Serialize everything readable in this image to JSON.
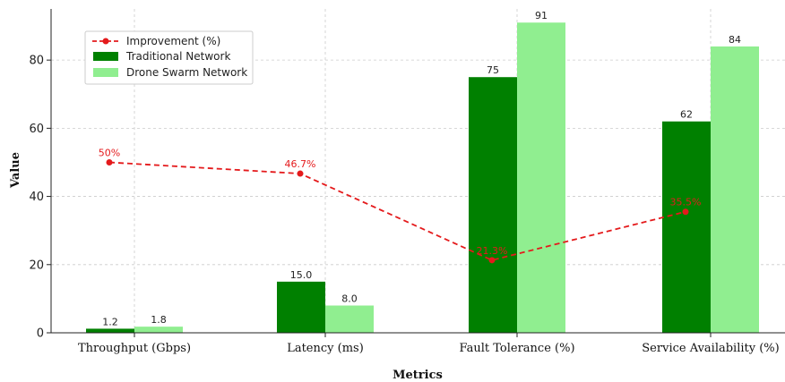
{
  "chart_data": {
    "type": "bar",
    "xlabel": "Metrics",
    "ylabel": "Value",
    "ylim": [
      0,
      95
    ],
    "yticks": [
      0,
      20,
      40,
      60,
      80
    ],
    "categories": [
      "Throughput (Gbps)",
      "Latency (ms)",
      "Fault Tolerance (%)",
      "Service Availability (%)"
    ],
    "series": [
      {
        "name": "Traditional Network",
        "type": "bar",
        "color": "#008000",
        "values": [
          1.2,
          15.0,
          75,
          62
        ],
        "labels": [
          "1.2",
          "15.0",
          "75",
          "62"
        ]
      },
      {
        "name": "Drone Swarm Network",
        "type": "bar",
        "color": "#90ee90",
        "values": [
          1.8,
          8.0,
          91,
          84
        ],
        "labels": [
          "1.8",
          "8.0",
          "91",
          "84"
        ]
      },
      {
        "name": "Improvement (%)",
        "type": "line",
        "color": "#e41a1c",
        "line_style": "dashed",
        "values": [
          50,
          46.7,
          21.3,
          35.5
        ],
        "labels": [
          "50%",
          "46.7%",
          "21.3%",
          "35.5%"
        ]
      }
    ],
    "legend": {
      "placement": "top-left",
      "order": [
        "Improvement (%)",
        "Traditional Network",
        "Drone Swarm Network"
      ]
    },
    "grid": true
  }
}
